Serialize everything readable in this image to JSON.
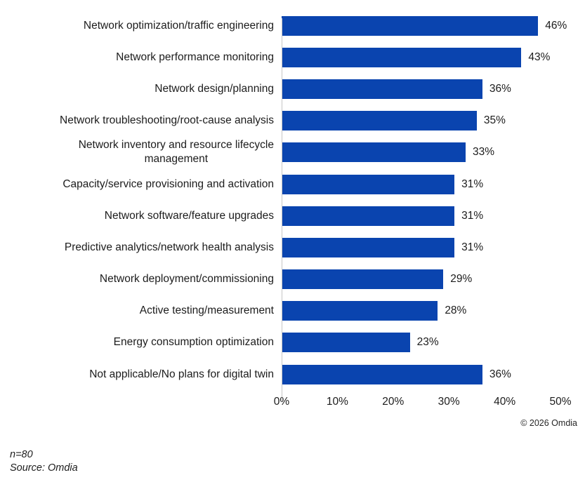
{
  "chart_data": {
    "type": "bar",
    "orientation": "horizontal",
    "title": "",
    "categories": [
      "Network optimization/traffic engineering",
      "Network performance monitoring",
      "Network design/planning",
      "Network troubleshooting/root-cause analysis",
      "Network inventory and resource lifecycle\nmanagement",
      "Capacity/service provisioning and activation",
      "Network software/feature upgrades",
      "Predictive analytics/network health analysis",
      "Network deployment/commissioning",
      "Active testing/measurement",
      "Energy consumption optimization",
      "Not applicable/No plans for digital twin"
    ],
    "values": [
      46,
      43,
      36,
      35,
      33,
      31,
      31,
      31,
      29,
      28,
      23,
      36
    ],
    "value_labels": [
      "46%",
      "43%",
      "36%",
      "35%",
      "33%",
      "31%",
      "31%",
      "31%",
      "29%",
      "28%",
      "23%",
      "36%"
    ],
    "x_ticks": [
      "0%",
      "10%",
      "20%",
      "30%",
      "40%",
      "50%"
    ],
    "xlim": [
      0,
      50
    ],
    "xlabel": "",
    "ylabel": "",
    "grid": "off",
    "legend": "none",
    "value_label_position": "outside-end",
    "bar_color": "#0a44af",
    "axis_color": "#c6c6c6",
    "text_color": "#1c1c1c"
  },
  "annotations": {
    "copyright": "© 2026 Omdia"
  },
  "footer": {
    "sample_size": "n=80",
    "source": "Source: Omdia"
  }
}
